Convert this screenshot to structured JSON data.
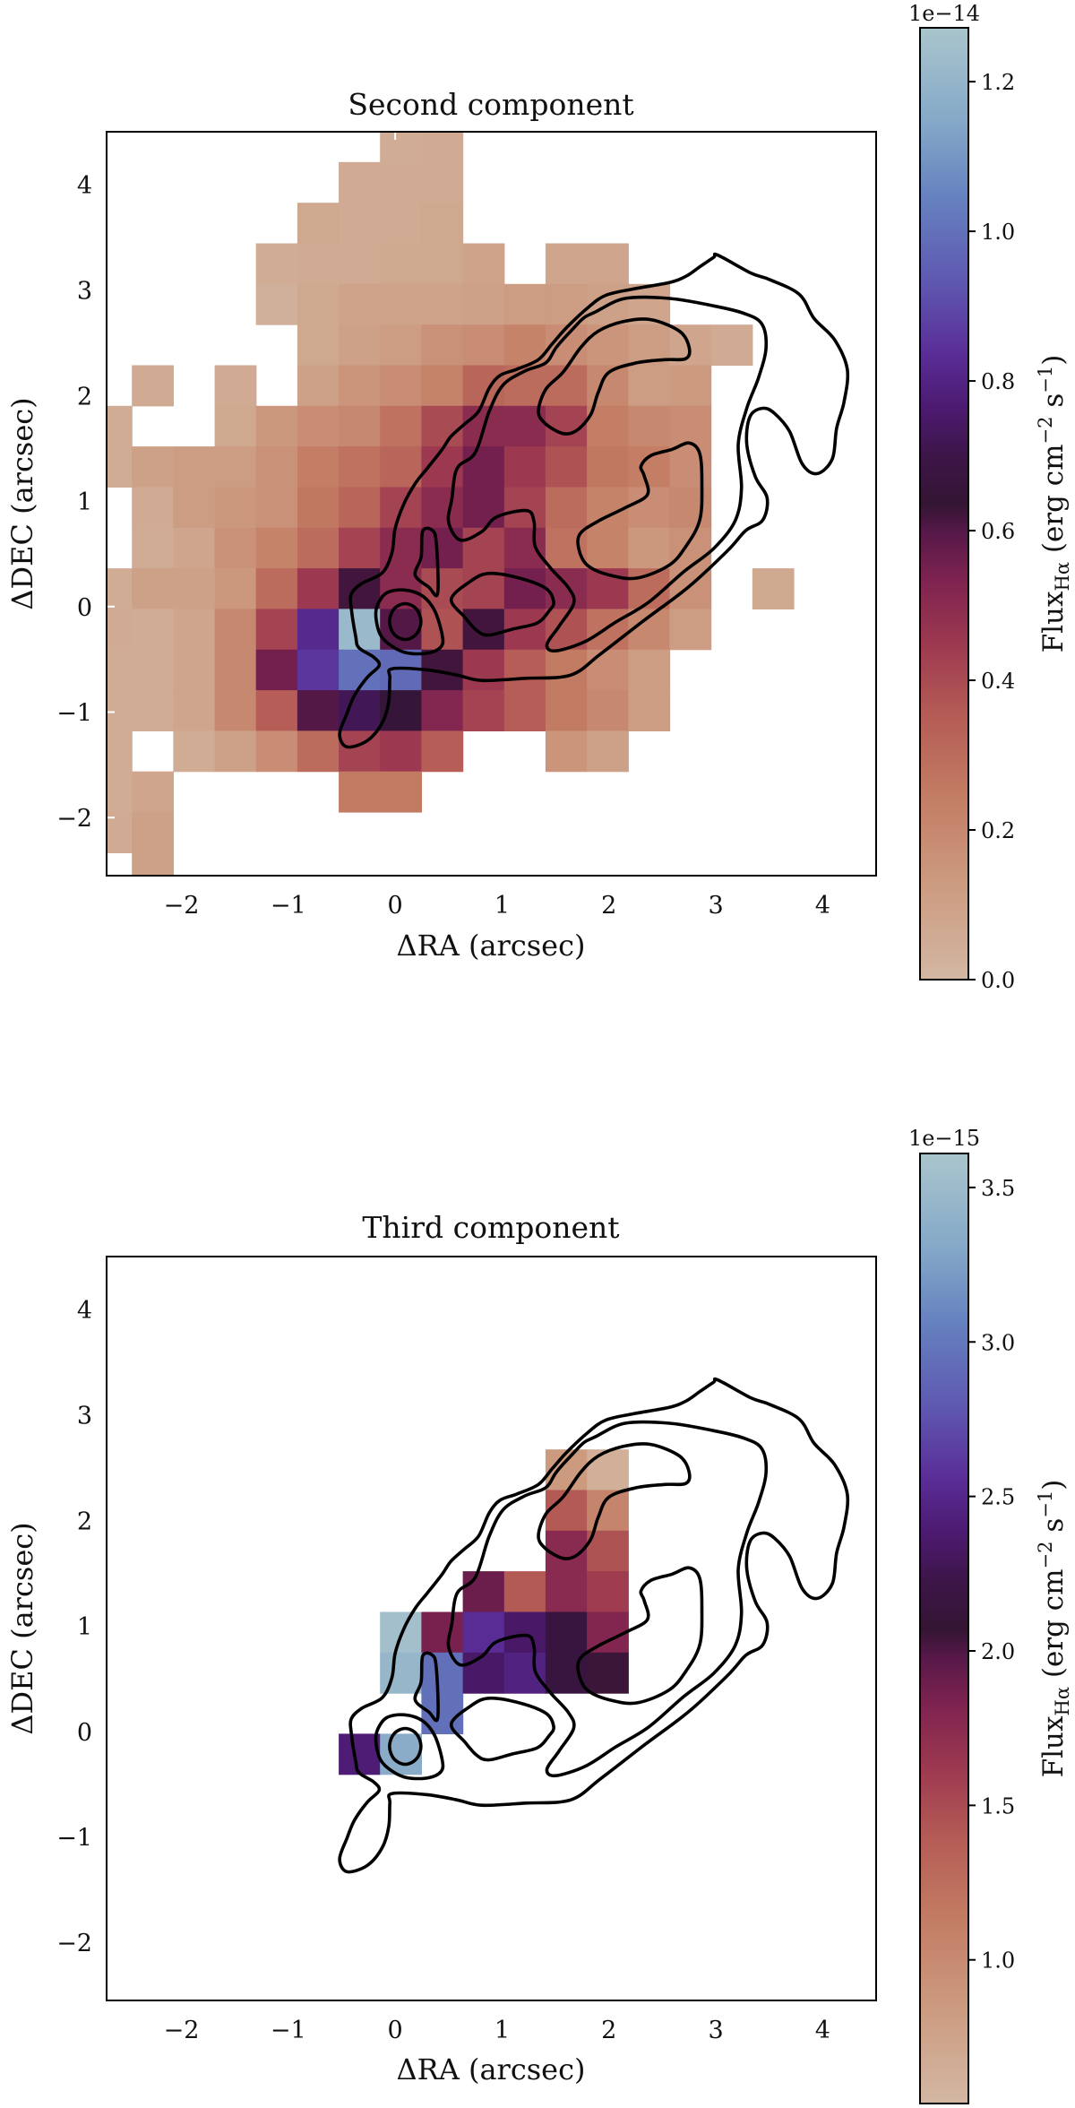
{
  "figure": {
    "colormap": [
      [
        0.0,
        "#d3b7a3"
      ],
      [
        0.1,
        "#cc9b80"
      ],
      [
        0.2,
        "#c27a62"
      ],
      [
        0.28,
        "#b45b55"
      ],
      [
        0.35,
        "#9e3a50"
      ],
      [
        0.42,
        "#7e2350"
      ],
      [
        0.47,
        "#561848"
      ],
      [
        0.5,
        "#331533"
      ],
      [
        0.55,
        "#3d1548"
      ],
      [
        0.6,
        "#4c1a70"
      ],
      [
        0.66,
        "#5a2e98"
      ],
      [
        0.74,
        "#5f5cb2"
      ],
      [
        0.82,
        "#6580bf"
      ],
      [
        0.9,
        "#84a8c8"
      ],
      [
        1.0,
        "#a9c5cc"
      ]
    ],
    "contour_color": "#000000"
  },
  "chart_data": [
    {
      "type": "heatmap",
      "title": "Second component",
      "xlabel": "ΔRA (arcsec)",
      "ylabel": "ΔDEC (arcsec)",
      "xlim": [
        -2.7,
        4.5
      ],
      "ylim": [
        -2.55,
        4.5
      ],
      "xticks": [
        -2,
        -1,
        0,
        1,
        2,
        3,
        4
      ],
      "xticklabels": [
        "−2",
        "−1",
        "0",
        "1",
        "2",
        "3",
        "4"
      ],
      "yticks": [
        -2,
        -1,
        0,
        1,
        2,
        3,
        4
      ],
      "yticklabels": [
        "−2",
        "−1",
        "0",
        "1",
        "2",
        "3",
        "4"
      ],
      "grid": false,
      "colorbar": {
        "range": [
          0.0,
          1.272
        ],
        "ticks": [
          0.0,
          0.2,
          0.4,
          0.6,
          0.8,
          1.0,
          1.2
        ],
        "ticklabels": [
          "0.0",
          "0.2",
          "0.4",
          "0.6",
          "0.8",
          "1.0",
          "1.2"
        ],
        "offset_text": "1e−14",
        "label": {
          "main": "Flux",
          "sub": "Hα",
          "unit_a": " (erg cm",
          "exp_a": "−2",
          "unit_b": " s",
          "exp_b": "−1",
          "close": ")"
        }
      },
      "ra_centers": [
        -2.657,
        -2.27,
        -1.883,
        -1.496,
        -1.109,
        -0.722,
        -0.335,
        0.052,
        0.439,
        0.826,
        1.213,
        1.6,
        1.987,
        2.374,
        2.761,
        3.148,
        3.535
      ],
      "dec_centers": [
        4.405,
        4.02,
        3.635,
        3.25,
        2.865,
        2.48,
        2.095,
        1.71,
        1.325,
        0.94,
        0.555,
        0.17,
        -0.215,
        -0.6,
        -0.985,
        -1.37,
        -1.755,
        -2.14,
        -2.525
      ],
      "values": [
        [
          null,
          null,
          null,
          null,
          null,
          null,
          null,
          0.05,
          0.06,
          null,
          null,
          null,
          null,
          null,
          null,
          null,
          null
        ],
        [
          null,
          null,
          null,
          null,
          null,
          null,
          0.06,
          0.06,
          0.06,
          null,
          null,
          null,
          null,
          null,
          null,
          null,
          null
        ],
        [
          null,
          null,
          null,
          null,
          null,
          0.07,
          0.06,
          0.06,
          0.07,
          null,
          null,
          null,
          null,
          null,
          null,
          null,
          null
        ],
        [
          null,
          null,
          null,
          null,
          0.05,
          0.06,
          0.06,
          0.07,
          0.07,
          0.09,
          null,
          0.08,
          0.08,
          null,
          null,
          null,
          null
        ],
        [
          null,
          null,
          null,
          null,
          0.03,
          0.07,
          0.09,
          0.09,
          0.09,
          0.1,
          0.12,
          0.12,
          0.1,
          0.08,
          null,
          null,
          null
        ],
        [
          null,
          null,
          null,
          null,
          null,
          0.07,
          0.1,
          0.12,
          0.16,
          0.18,
          0.22,
          0.18,
          0.15,
          0.12,
          0.08,
          0.06,
          null
        ],
        [
          null,
          0.06,
          null,
          0.06,
          null,
          0.1,
          0.15,
          0.18,
          0.22,
          0.32,
          0.3,
          0.3,
          0.2,
          0.12,
          0.13,
          null,
          null
        ],
        [
          0.05,
          null,
          null,
          0.07,
          0.14,
          0.18,
          0.2,
          0.28,
          0.4,
          0.5,
          0.5,
          0.42,
          0.24,
          0.2,
          0.18,
          null,
          null
        ],
        [
          0.05,
          0.1,
          0.12,
          0.12,
          0.16,
          0.24,
          0.28,
          0.32,
          0.45,
          0.55,
          0.45,
          0.38,
          0.26,
          0.24,
          0.18,
          null,
          null
        ],
        [
          null,
          0.06,
          0.12,
          0.14,
          0.16,
          0.26,
          0.32,
          0.42,
          0.5,
          0.55,
          0.42,
          0.3,
          0.22,
          0.18,
          0.2,
          null,
          null
        ],
        [
          null,
          0.05,
          0.08,
          0.16,
          0.22,
          0.3,
          0.42,
          0.5,
          0.55,
          0.42,
          0.5,
          0.28,
          0.22,
          0.14,
          0.16,
          null,
          null
        ],
        [
          0.05,
          0.1,
          0.1,
          0.14,
          0.3,
          0.45,
          0.62,
          0.5,
          0.4,
          0.42,
          0.55,
          0.5,
          0.45,
          0.3,
          0.16,
          null,
          0.07
        ],
        [
          0.06,
          0.05,
          0.08,
          0.2,
          0.42,
          0.82,
          1.22,
          0.6,
          0.38,
          0.62,
          0.45,
          0.38,
          0.28,
          0.2,
          0.12,
          null,
          null
        ],
        [
          0.05,
          0.05,
          0.08,
          0.2,
          0.55,
          0.86,
          1.0,
          0.98,
          0.62,
          0.45,
          0.35,
          0.25,
          0.18,
          0.12,
          null,
          null,
          null
        ],
        [
          0.05,
          0.05,
          0.08,
          0.2,
          0.35,
          0.6,
          0.72,
          0.65,
          0.52,
          0.42,
          0.35,
          0.25,
          0.2,
          0.12,
          null,
          null,
          null
        ],
        [
          0.05,
          null,
          0.05,
          0.1,
          0.18,
          0.3,
          0.42,
          0.45,
          0.35,
          null,
          null,
          0.15,
          0.1,
          null,
          null,
          null,
          null
        ],
        [
          0.05,
          0.08,
          null,
          null,
          null,
          null,
          0.25,
          0.25,
          null,
          null,
          null,
          null,
          null,
          null,
          null,
          null,
          null
        ],
        [
          0.06,
          0.1,
          null,
          null,
          null,
          null,
          null,
          null,
          null,
          null,
          null,
          null,
          null,
          null,
          null,
          null,
          null
        ],
        [
          null,
          0.1,
          null,
          null,
          null,
          null,
          null,
          null,
          null,
          null,
          null,
          null,
          null,
          null,
          null,
          null,
          null
        ]
      ]
    },
    {
      "type": "heatmap",
      "title": "Third component",
      "xlabel": "ΔRA (arcsec)",
      "ylabel": "ΔDEC (arcsec)",
      "xlim": [
        -2.7,
        4.5
      ],
      "ylim": [
        -2.55,
        4.5
      ],
      "xticks": [
        -2,
        -1,
        0,
        1,
        2,
        3,
        4
      ],
      "xticklabels": [
        "−2",
        "−1",
        "0",
        "1",
        "2",
        "3",
        "4"
      ],
      "yticks": [
        -2,
        -1,
        0,
        1,
        2,
        3,
        4
      ],
      "yticklabels": [
        "−2",
        "−1",
        "0",
        "1",
        "2",
        "3",
        "4"
      ],
      "grid": false,
      "colorbar": {
        "range": [
          0.535,
          3.61
        ],
        "ticks": [
          1.0,
          1.5,
          2.0,
          2.5,
          3.0,
          3.5
        ],
        "ticklabels": [
          "1.0",
          "1.5",
          "2.0",
          "2.5",
          "3.0",
          "3.5"
        ],
        "offset_text": "1e−15",
        "label": {
          "main": "Flux",
          "sub": "Hα",
          "unit_a": " (erg cm",
          "exp_a": "−2",
          "unit_b": " s",
          "exp_b": "−1",
          "close": ")"
        }
      },
      "ra_centers": [
        -0.335,
        0.052,
        0.439,
        0.826,
        1.213,
        1.6,
        1.987
      ],
      "dec_centers": [
        2.48,
        2.095,
        1.71,
        1.325,
        0.94,
        0.555,
        0.17,
        -0.215
      ],
      "values": [
        [
          null,
          null,
          null,
          null,
          null,
          0.85,
          0.62
        ],
        [
          null,
          null,
          null,
          null,
          null,
          1.4,
          1.05
        ],
        [
          null,
          null,
          null,
          null,
          null,
          1.75,
          1.45
        ],
        [
          null,
          null,
          null,
          1.9,
          1.4,
          1.75,
          1.6
        ],
        [
          null,
          3.55,
          1.85,
          2.55,
          2.35,
          2.15,
          1.8
        ],
        [
          null,
          3.45,
          2.95,
          2.35,
          2.45,
          2.15,
          2.05
        ],
        [
          null,
          null,
          2.95,
          null,
          null,
          null,
          null
        ],
        [
          2.4,
          3.35,
          null,
          null,
          null,
          null,
          null
        ]
      ]
    }
  ],
  "contours": [
    [
      [
        3.02,
        3.33
      ],
      [
        3.33,
        3.16
      ],
      [
        3.5,
        3.1
      ],
      [
        3.78,
        2.96
      ],
      [
        3.92,
        2.73
      ],
      [
        4.11,
        2.53
      ],
      [
        4.23,
        2.25
      ],
      [
        4.2,
        1.94
      ],
      [
        4.13,
        1.69
      ],
      [
        4.09,
        1.4
      ],
      [
        3.95,
        1.26
      ],
      [
        3.81,
        1.35
      ],
      [
        3.69,
        1.66
      ],
      [
        3.55,
        1.83
      ],
      [
        3.44,
        1.88
      ],
      [
        3.32,
        1.8
      ],
      [
        3.29,
        1.54
      ],
      [
        3.37,
        1.23
      ],
      [
        3.48,
        1.03
      ],
      [
        3.44,
        0.82
      ],
      [
        3.28,
        0.72
      ],
      [
        3.11,
        0.53
      ],
      [
        2.75,
        0.19
      ],
      [
        2.33,
        -0.13
      ],
      [
        1.92,
        -0.45
      ],
      [
        1.64,
        -0.65
      ],
      [
        1.22,
        -0.68
      ],
      [
        0.81,
        -0.7
      ],
      [
        0.58,
        -0.65
      ],
      [
        0.3,
        -0.6
      ],
      [
        -0.03,
        -0.59
      ],
      [
        -0.05,
        -0.68
      ],
      [
        -0.06,
        -0.9
      ],
      [
        -0.12,
        -1.1
      ],
      [
        -0.26,
        -1.27
      ],
      [
        -0.45,
        -1.33
      ],
      [
        -0.52,
        -1.21
      ],
      [
        -0.45,
        -1.01
      ],
      [
        -0.38,
        -0.84
      ],
      [
        -0.26,
        -0.67
      ],
      [
        -0.15,
        -0.56
      ],
      [
        -0.2,
        -0.48
      ],
      [
        -0.34,
        -0.39
      ],
      [
        -0.37,
        -0.28
      ],
      [
        -0.41,
        -0.02
      ],
      [
        -0.41,
        0.12
      ],
      [
        -0.31,
        0.22
      ],
      [
        -0.12,
        0.32
      ],
      [
        -0.03,
        0.51
      ],
      [
        0.0,
        0.74
      ],
      [
        0.08,
        0.97
      ],
      [
        0.19,
        1.17
      ],
      [
        0.3,
        1.31
      ],
      [
        0.44,
        1.49
      ],
      [
        0.52,
        1.61
      ],
      [
        0.65,
        1.73
      ],
      [
        0.78,
        1.85
      ],
      [
        0.88,
        2.07
      ],
      [
        0.98,
        2.19
      ],
      [
        1.14,
        2.25
      ],
      [
        1.34,
        2.34
      ],
      [
        1.47,
        2.49
      ],
      [
        1.6,
        2.64
      ],
      [
        1.8,
        2.83
      ],
      [
        1.97,
        2.95
      ],
      [
        2.23,
        3.01
      ],
      [
        2.56,
        3.07
      ],
      [
        2.72,
        3.13
      ],
      [
        2.85,
        3.22
      ],
      [
        2.98,
        3.31
      ]
    ],
    [
      [
        1.87,
        2.79
      ],
      [
        2.15,
        2.92
      ],
      [
        2.57,
        2.92
      ],
      [
        2.98,
        2.85
      ],
      [
        3.26,
        2.78
      ],
      [
        3.43,
        2.68
      ],
      [
        3.47,
        2.45
      ],
      [
        3.4,
        2.17
      ],
      [
        3.29,
        1.88
      ],
      [
        3.21,
        1.54
      ],
      [
        3.24,
        1.12
      ],
      [
        3.18,
        0.81
      ],
      [
        2.98,
        0.55
      ],
      [
        2.7,
        0.33
      ],
      [
        2.37,
        0.04
      ],
      [
        2.06,
        -0.15
      ],
      [
        1.78,
        -0.33
      ],
      [
        1.5,
        -0.42
      ],
      [
        1.42,
        -0.36
      ],
      [
        1.53,
        -0.19
      ],
      [
        1.67,
        0.03
      ],
      [
        1.62,
        0.18
      ],
      [
        1.45,
        0.37
      ],
      [
        1.31,
        0.57
      ],
      [
        1.3,
        0.8
      ],
      [
        1.23,
        0.91
      ],
      [
        0.95,
        0.85
      ],
      [
        0.81,
        0.71
      ],
      [
        0.61,
        0.63
      ],
      [
        0.5,
        0.8
      ],
      [
        0.53,
        1.02
      ],
      [
        0.58,
        1.31
      ],
      [
        0.75,
        1.46
      ],
      [
        0.88,
        1.85
      ],
      [
        1.01,
        2.1
      ],
      [
        1.21,
        2.23
      ],
      [
        1.41,
        2.31
      ],
      [
        1.51,
        2.46
      ],
      [
        1.67,
        2.64
      ],
      [
        1.77,
        2.74
      ]
    ],
    [
      [
        -0.165,
        0.015
      ],
      [
        -0.08,
        0.13
      ],
      [
        0.088,
        0.157
      ],
      [
        0.257,
        0.1
      ],
      [
        0.37,
        -0.04
      ],
      [
        0.44,
        -0.27
      ],
      [
        0.43,
        -0.38
      ],
      [
        0.31,
        -0.44
      ],
      [
        0.117,
        -0.44
      ],
      [
        -0.024,
        -0.38
      ],
      [
        -0.137,
        -0.27
      ],
      [
        -0.18,
        -0.1
      ]
    ],
    [
      [
        0.094,
        0.028
      ],
      [
        0.198,
        -0.022
      ],
      [
        0.241,
        -0.142
      ],
      [
        0.198,
        -0.262
      ],
      [
        0.094,
        -0.312
      ],
      [
        -0.01,
        -0.262
      ],
      [
        -0.053,
        -0.142
      ],
      [
        -0.01,
        -0.022
      ]
    ],
    [
      [
        0.257,
        0.713
      ],
      [
        0.342,
        0.727
      ],
      [
        0.384,
        0.613
      ],
      [
        0.398,
        0.128
      ],
      [
        0.314,
        0.185
      ],
      [
        0.187,
        0.3
      ],
      [
        0.243,
        0.47
      ]
    ],
    [
      [
        0.525,
        0.071
      ],
      [
        0.708,
        0.242
      ],
      [
        0.877,
        0.314
      ],
      [
        1.159,
        0.271
      ],
      [
        1.412,
        0.171
      ],
      [
        1.483,
        0.043
      ],
      [
        1.44,
        -0.042
      ],
      [
        1.328,
        -0.156
      ],
      [
        1.1,
        -0.213
      ],
      [
        0.877,
        -0.27
      ],
      [
        0.765,
        -0.228
      ],
      [
        0.652,
        -0.1
      ]
    ],
    [
      [
        1.34,
        1.85
      ],
      [
        1.41,
        2.06
      ],
      [
        1.57,
        2.22
      ],
      [
        1.74,
        2.46
      ],
      [
        1.9,
        2.61
      ],
      [
        2.13,
        2.7
      ],
      [
        2.39,
        2.72
      ],
      [
        2.66,
        2.61
      ],
      [
        2.75,
        2.46
      ],
      [
        2.72,
        2.35
      ],
      [
        2.52,
        2.34
      ],
      [
        2.26,
        2.31
      ],
      [
        2.0,
        2.22
      ],
      [
        1.9,
        2.03
      ],
      [
        1.83,
        1.82
      ],
      [
        1.7,
        1.67
      ],
      [
        1.57,
        1.64
      ],
      [
        1.41,
        1.73
      ]
    ],
    [
      [
        2.3,
        1.33
      ],
      [
        2.39,
        1.43
      ],
      [
        2.59,
        1.49
      ],
      [
        2.75,
        1.55
      ],
      [
        2.85,
        1.45
      ],
      [
        2.87,
        1.15
      ],
      [
        2.85,
        0.82
      ],
      [
        2.72,
        0.57
      ],
      [
        2.56,
        0.39
      ],
      [
        2.26,
        0.27
      ],
      [
        2.0,
        0.3
      ],
      [
        1.8,
        0.39
      ],
      [
        1.72,
        0.54
      ],
      [
        1.73,
        0.69
      ],
      [
        1.9,
        0.81
      ],
      [
        2.16,
        0.94
      ],
      [
        2.36,
        1.06
      ],
      [
        2.33,
        1.24
      ]
    ]
  ]
}
